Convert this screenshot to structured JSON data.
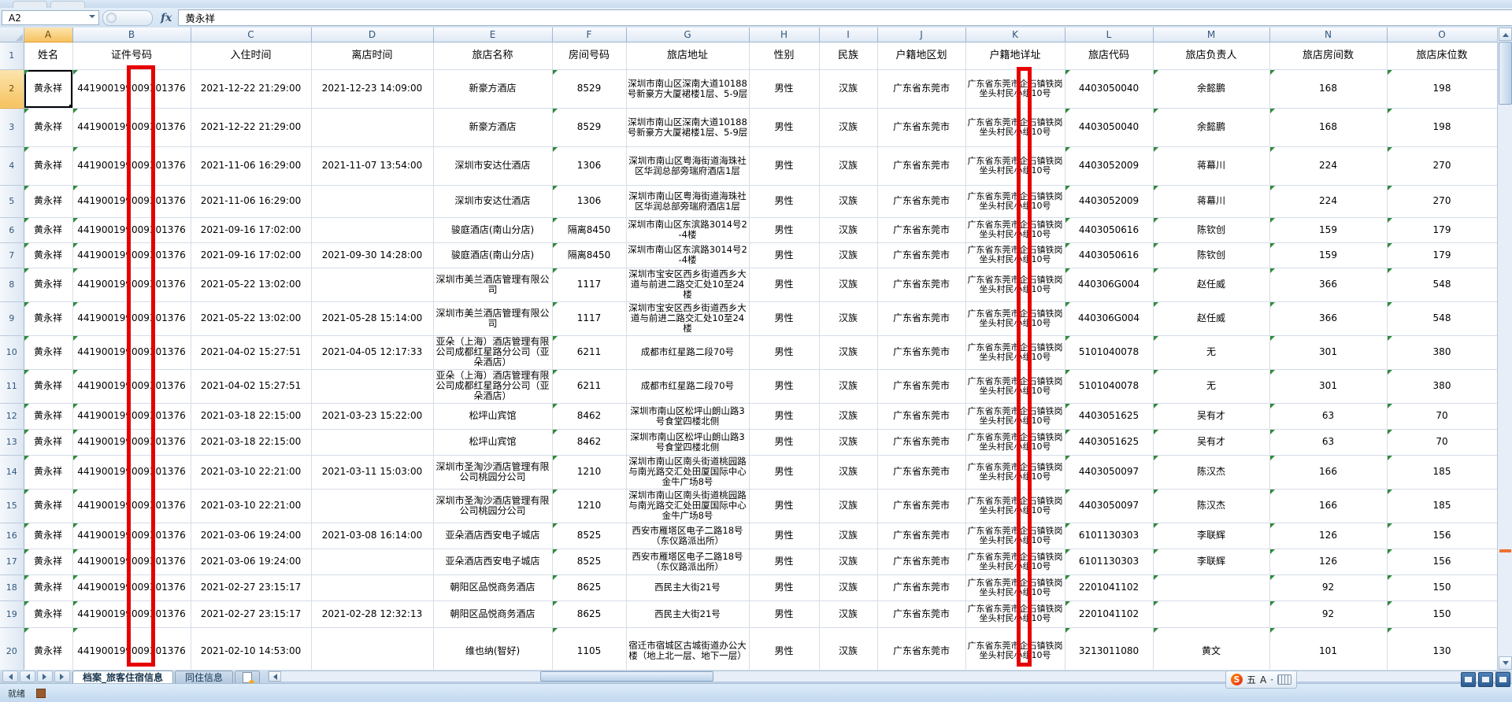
{
  "app": {
    "name_box": "A2",
    "fx_label": "fx",
    "formula_value": "黄永祥"
  },
  "status": {
    "ready": "就绪"
  },
  "tabs": {
    "active": "档案_旅客住宿信息",
    "others": [
      "同住信息"
    ]
  },
  "ime": {
    "s": "S",
    "lang": "五",
    "case_label": "A",
    "dot": "·"
  },
  "columns": {
    "letters": [
      "A",
      "B",
      "C",
      "D",
      "E",
      "F",
      "G",
      "H",
      "I",
      "J",
      "K",
      "L",
      "M",
      "N",
      "O"
    ],
    "labels": [
      "姓名",
      "证件号码",
      "入住时间",
      "离店时间",
      "旅店名称",
      "房间号码",
      "旅店地址",
      "性别",
      "民族",
      "户籍地区划",
      "户籍地详址",
      "旅店代码",
      "旅店负责人",
      "旅店房间数",
      "旅店床位数"
    ]
  },
  "rows": [
    {
      "n": 2,
      "name": "黄永祥",
      "id": "441900199009301376",
      "in": "2021-12-22 21:29:00",
      "out": "2021-12-23 14:09:00",
      "hotel": "新豪方酒店",
      "room": "8529",
      "addr": "深圳市南山区深南大道10188号新豪方大厦裙楼1层、5-9层",
      "sex": "男性",
      "eth": "汉族",
      "reg": "广东省东莞市",
      "det": "广东省东莞市企石镇铁岗坐头村民小组10号",
      "code": "4403050040",
      "mgr": "余懿鹏",
      "nrooms": "168",
      "nbeds": "198"
    },
    {
      "n": 3,
      "name": "黄永祥",
      "id": "441900199009301376",
      "in": "2021-12-22 21:29:00",
      "out": "",
      "hotel": "新豪方酒店",
      "room": "8529",
      "addr": "深圳市南山区深南大道10188号新豪方大厦裙楼1层、5-9层",
      "sex": "男性",
      "eth": "汉族",
      "reg": "广东省东莞市",
      "det": "广东省东莞市企石镇铁岗坐头村民小组10号",
      "code": "4403050040",
      "mgr": "余懿鹏",
      "nrooms": "168",
      "nbeds": "198"
    },
    {
      "n": 4,
      "name": "黄永祥",
      "id": "441900199009301376",
      "in": "2021-11-06 16:29:00",
      "out": "2021-11-07 13:54:00",
      "hotel": "深圳市安达仕酒店",
      "room": "1306",
      "addr": "深圳市南山区粤海街道海珠社区华润总部旁瑞府酒店1层",
      "sex": "男性",
      "eth": "汉族",
      "reg": "广东省东莞市",
      "det": "广东省东莞市企石镇铁岗坐头村民小组10号",
      "code": "4403052009",
      "mgr": "蒋幕川",
      "nrooms": "224",
      "nbeds": "270"
    },
    {
      "n": 5,
      "name": "黄永祥",
      "id": "441900199009301376",
      "in": "2021-11-06 16:29:00",
      "out": "",
      "hotel": "深圳市安达仕酒店",
      "room": "1306",
      "addr": "深圳市南山区粤海街道海珠社区华润总部旁瑞府酒店1层",
      "sex": "男性",
      "eth": "汉族",
      "reg": "广东省东莞市",
      "det": "广东省东莞市企石镇铁岗坐头村民小组10号",
      "code": "4403052009",
      "mgr": "蒋幕川",
      "nrooms": "224",
      "nbeds": "270"
    },
    {
      "n": 6,
      "name": "黄永祥",
      "id": "441900199009301376",
      "in": "2021-09-16 17:02:00",
      "out": "",
      "hotel": "骏庭酒店(南山分店)",
      "room": "隔离8450",
      "addr": "深圳市南山区东滨路3014号2-4楼",
      "sex": "男性",
      "eth": "汉族",
      "reg": "广东省东莞市",
      "det": "广东省东莞市企石镇铁岗坐头村民小组10号",
      "code": "4403050616",
      "mgr": "陈钦创",
      "nrooms": "159",
      "nbeds": "179"
    },
    {
      "n": 7,
      "name": "黄永祥",
      "id": "441900199009301376",
      "in": "2021-09-16 17:02:00",
      "out": "2021-09-30 14:28:00",
      "hotel": "骏庭酒店(南山分店)",
      "room": "隔离8450",
      "addr": "深圳市南山区东滨路3014号2-4楼",
      "sex": "男性",
      "eth": "汉族",
      "reg": "广东省东莞市",
      "det": "广东省东莞市企石镇铁岗坐头村民小组10号",
      "code": "4403050616",
      "mgr": "陈钦创",
      "nrooms": "159",
      "nbeds": "179"
    },
    {
      "n": 8,
      "name": "黄永祥",
      "id": "441900199009301376",
      "in": "2021-05-22 13:02:00",
      "out": "",
      "hotel": "深圳市美兰酒店管理有限公司",
      "room": "1117",
      "addr": "深圳市宝安区西乡街道西乡大道与前进二路交汇处10至24楼",
      "sex": "男性",
      "eth": "汉族",
      "reg": "广东省东莞市",
      "det": "广东省东莞市企石镇铁岗坐头村民小组10号",
      "code": "440306G004",
      "mgr": "赵任威",
      "nrooms": "366",
      "nbeds": "548"
    },
    {
      "n": 9,
      "name": "黄永祥",
      "id": "441900199009301376",
      "in": "2021-05-22 13:02:00",
      "out": "2021-05-28 15:14:00",
      "hotel": "深圳市美兰酒店管理有限公司",
      "room": "1117",
      "addr": "深圳市宝安区西乡街道西乡大道与前进二路交汇处10至24楼",
      "sex": "男性",
      "eth": "汉族",
      "reg": "广东省东莞市",
      "det": "广东省东莞市企石镇铁岗坐头村民小组10号",
      "code": "440306G004",
      "mgr": "赵任威",
      "nrooms": "366",
      "nbeds": "548"
    },
    {
      "n": 10,
      "name": "黄永祥",
      "id": "441900199009301376",
      "in": "2021-04-02 15:27:51",
      "out": "2021-04-05 12:17:33",
      "hotel": "亚朵（上海）酒店管理有限公司成都红星路分公司（亚朵酒店）",
      "room": "6211",
      "addr": "成都市红星路二段70号",
      "sex": "男性",
      "eth": "汉族",
      "reg": "广东省东莞市",
      "det": "广东省东莞市企石镇铁岗坐头村民小组10号",
      "code": "5101040078",
      "mgr": "无",
      "nrooms": "301",
      "nbeds": "380"
    },
    {
      "n": 11,
      "name": "黄永祥",
      "id": "441900199009301376",
      "in": "2021-04-02 15:27:51",
      "out": "",
      "hotel": "亚朵（上海）酒店管理有限公司成都红星路分公司（亚朵酒店）",
      "room": "6211",
      "addr": "成都市红星路二段70号",
      "sex": "男性",
      "eth": "汉族",
      "reg": "广东省东莞市",
      "det": "广东省东莞市企石镇铁岗坐头村民小组10号",
      "code": "5101040078",
      "mgr": "无",
      "nrooms": "301",
      "nbeds": "380"
    },
    {
      "n": 12,
      "name": "黄永祥",
      "id": "441900199009301376",
      "in": "2021-03-18 22:15:00",
      "out": "2021-03-23 15:22:00",
      "hotel": "松坪山宾馆",
      "room": "8462",
      "addr": "深圳市南山区松坪山朗山路3号食堂四楼北侧",
      "sex": "男性",
      "eth": "汉族",
      "reg": "广东省东莞市",
      "det": "广东省东莞市企石镇铁岗坐头村民小组10号",
      "code": "4403051625",
      "mgr": "吴有才",
      "nrooms": "63",
      "nbeds": "70"
    },
    {
      "n": 13,
      "name": "黄永祥",
      "id": "441900199009301376",
      "in": "2021-03-18 22:15:00",
      "out": "",
      "hotel": "松坪山宾馆",
      "room": "8462",
      "addr": "深圳市南山区松坪山朗山路3号食堂四楼北侧",
      "sex": "男性",
      "eth": "汉族",
      "reg": "广东省东莞市",
      "det": "广东省东莞市企石镇铁岗坐头村民小组10号",
      "code": "4403051625",
      "mgr": "吴有才",
      "nrooms": "63",
      "nbeds": "70"
    },
    {
      "n": 14,
      "name": "黄永祥",
      "id": "441900199009301376",
      "in": "2021-03-10 22:21:00",
      "out": "2021-03-11 15:03:00",
      "hotel": "深圳市圣淘沙酒店管理有限公司桃园分公司",
      "room": "1210",
      "addr": "深圳市南山区南头街道桃园路与南光路交汇处田厦国际中心金牛广场8号",
      "sex": "男性",
      "eth": "汉族",
      "reg": "广东省东莞市",
      "det": "广东省东莞市企石镇铁岗坐头村民小组10号",
      "code": "4403050097",
      "mgr": "陈汉杰",
      "nrooms": "166",
      "nbeds": "185"
    },
    {
      "n": 15,
      "name": "黄永祥",
      "id": "441900199009301376",
      "in": "2021-03-10 22:21:00",
      "out": "",
      "hotel": "深圳市圣淘沙酒店管理有限公司桃园分公司",
      "room": "1210",
      "addr": "深圳市南山区南头街道桃园路与南光路交汇处田厦国际中心金牛广场8号",
      "sex": "男性",
      "eth": "汉族",
      "reg": "广东省东莞市",
      "det": "广东省东莞市企石镇铁岗坐头村民小组10号",
      "code": "4403050097",
      "mgr": "陈汉杰",
      "nrooms": "166",
      "nbeds": "185"
    },
    {
      "n": 16,
      "name": "黄永祥",
      "id": "441900199009301376",
      "in": "2021-03-06 19:24:00",
      "out": "2021-03-08 16:14:00",
      "hotel": "亚朵酒店西安电子城店",
      "room": "8525",
      "addr": "西安市雁塔区电子二路18号（东仪路派出所）",
      "sex": "男性",
      "eth": "汉族",
      "reg": "广东省东莞市",
      "det": "广东省东莞市企石镇铁岗坐头村民小组10号",
      "code": "6101130303",
      "mgr": "李联辉",
      "nrooms": "126",
      "nbeds": "156"
    },
    {
      "n": 17,
      "name": "黄永祥",
      "id": "441900199009301376",
      "in": "2021-03-06 19:24:00",
      "out": "",
      "hotel": "亚朵酒店西安电子城店",
      "room": "8525",
      "addr": "西安市雁塔区电子二路18号（东仪路派出所）",
      "sex": "男性",
      "eth": "汉族",
      "reg": "广东省东莞市",
      "det": "广东省东莞市企石镇铁岗坐头村民小组10号",
      "code": "6101130303",
      "mgr": "李联辉",
      "nrooms": "126",
      "nbeds": "156"
    },
    {
      "n": 18,
      "name": "黄永祥",
      "id": "441900199009301376",
      "in": "2021-02-27 23:15:17",
      "out": "",
      "hotel": "朝阳区品悦商务酒店",
      "room": "8625",
      "addr": "西民主大街21号",
      "sex": "男性",
      "eth": "汉族",
      "reg": "广东省东莞市",
      "det": "广东省东莞市企石镇铁岗坐头村民小组10号",
      "code": "2201041102",
      "mgr": "",
      "nrooms": "92",
      "nbeds": "150"
    },
    {
      "n": 19,
      "name": "黄永祥",
      "id": "441900199009301376",
      "in": "2021-02-27 23:15:17",
      "out": "2021-02-28 12:32:13",
      "hotel": "朝阳区品悦商务酒店",
      "room": "8625",
      "addr": "西民主大街21号",
      "sex": "男性",
      "eth": "汉族",
      "reg": "广东省东莞市",
      "det": "广东省东莞市企石镇铁岗坐头村民小组10号",
      "code": "2201041102",
      "mgr": "",
      "nrooms": "92",
      "nbeds": "150"
    },
    {
      "n": 20,
      "name": "黄永祥",
      "id": "441900199009301376",
      "in": "2021-02-10 14:53:00",
      "out": "",
      "hotel": "维也纳(智好)",
      "room": "1105",
      "addr": "宿迁市宿城区古城街道办公大楼（地上北一层、地下一层）",
      "sex": "男性",
      "eth": "汉族",
      "reg": "广东省东莞市",
      "det": "广东省东莞市企石镇铁岗坐头村民小组10号",
      "code": "3213011080",
      "mgr": "黄文",
      "nrooms": "101",
      "nbeds": "130"
    }
  ]
}
